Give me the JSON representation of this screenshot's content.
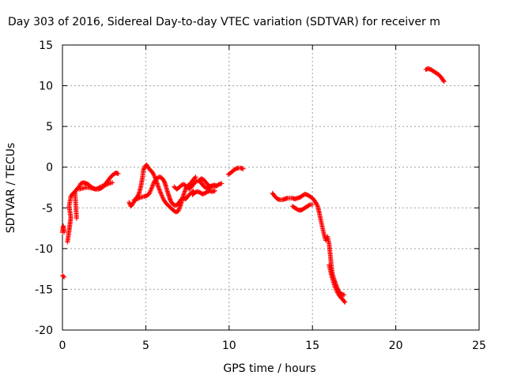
{
  "chart_data": {
    "type": "scatter",
    "title": "Day 303 of 2016, Sidereal Day-to-day VTEC variation (SDTVAR) for receiver m",
    "xlabel": "GPS time / hours",
    "ylabel": "SDTVAR / TECUs",
    "xlim": [
      0,
      25
    ],
    "ylim": [
      -20,
      15
    ],
    "xticks": [
      0,
      5,
      10,
      15,
      20,
      25
    ],
    "yticks": [
      -20,
      -15,
      -10,
      -5,
      0,
      5,
      10,
      15
    ],
    "grid": true,
    "marker": "+",
    "color": "#ff0000",
    "series": [
      {
        "name": "SDTVAR",
        "segments": [
          [
            [
              0.0,
              -13.3
            ],
            [
              0.1,
              -13.5
            ]
          ],
          [
            [
              0.0,
              -8.0
            ],
            [
              0.05,
              -7.2
            ],
            [
              0.1,
              -8.0
            ]
          ],
          [
            [
              0.3,
              -9.2
            ],
            [
              0.35,
              -8.5
            ],
            [
              0.4,
              -7.8
            ],
            [
              0.45,
              -7.0
            ],
            [
              0.5,
              -6.2
            ],
            [
              0.45,
              -5.5
            ],
            [
              0.4,
              -4.8
            ],
            [
              0.45,
              -4.2
            ],
            [
              0.5,
              -3.6
            ],
            [
              0.6,
              -3.3
            ],
            [
              0.75,
              -3.0
            ],
            [
              0.85,
              -6.3
            ]
          ],
          [
            [
              0.8,
              -2.9
            ],
            [
              0.9,
              -2.6
            ],
            [
              1.0,
              -2.4
            ],
            [
              1.1,
              -2.0
            ],
            [
              1.25,
              -1.9
            ],
            [
              1.4,
              -2.0
            ],
            [
              1.55,
              -2.1
            ],
            [
              1.7,
              -2.4
            ],
            [
              1.85,
              -2.6
            ],
            [
              2.0,
              -2.7
            ],
            [
              2.15,
              -2.7
            ],
            [
              2.3,
              -2.6
            ],
            [
              2.45,
              -2.4
            ],
            [
              2.6,
              -2.0
            ],
            [
              2.75,
              -1.6
            ],
            [
              2.9,
              -1.2
            ],
            [
              3.05,
              -0.9
            ],
            [
              3.2,
              -0.7
            ],
            [
              3.35,
              -0.8
            ]
          ],
          [
            [
              1.0,
              -2.7
            ],
            [
              1.2,
              -2.6
            ],
            [
              1.4,
              -2.5
            ],
            [
              1.6,
              -2.5
            ],
            [
              1.8,
              -2.6
            ],
            [
              2.0,
              -2.7
            ],
            [
              2.2,
              -2.5
            ],
            [
              2.4,
              -2.3
            ],
            [
              2.6,
              -2.2
            ],
            [
              2.8,
              -2.0
            ],
            [
              3.0,
              -1.9
            ]
          ],
          [
            [
              4.0,
              -4.3
            ],
            [
              4.1,
              -4.8
            ],
            [
              4.2,
              -4.6
            ],
            [
              4.3,
              -4.2
            ],
            [
              4.45,
              -3.8
            ],
            [
              4.6,
              -3.2
            ],
            [
              4.7,
              -2.4
            ],
            [
              4.8,
              -1.3
            ],
            [
              4.85,
              -0.4
            ],
            [
              4.95,
              0.1
            ],
            [
              5.05,
              0.3
            ],
            [
              5.15,
              -0.1
            ],
            [
              5.3,
              -0.4
            ],
            [
              5.45,
              -0.8
            ],
            [
              5.6,
              -1.5
            ],
            [
              5.75,
              -2.4
            ],
            [
              5.9,
              -3.2
            ],
            [
              6.05,
              -3.9
            ],
            [
              6.2,
              -4.4
            ],
            [
              6.35,
              -4.7
            ],
            [
              6.5,
              -5.0
            ],
            [
              6.65,
              -5.3
            ],
            [
              6.8,
              -5.5
            ],
            [
              6.95,
              -5.4
            ],
            [
              7.1,
              -4.6
            ],
            [
              7.25,
              -3.5
            ],
            [
              7.4,
              -2.6
            ],
            [
              7.55,
              -2.2
            ],
            [
              7.7,
              -2.0
            ],
            [
              7.85,
              -1.5
            ],
            [
              8.0,
              -1.2
            ]
          ],
          [
            [
              4.3,
              -4.0
            ],
            [
              4.5,
              -3.9
            ],
            [
              4.7,
              -3.7
            ],
            [
              4.9,
              -3.6
            ],
            [
              5.05,
              -3.5
            ],
            [
              5.2,
              -3.3
            ],
            [
              5.35,
              -2.6
            ],
            [
              5.5,
              -1.8
            ],
            [
              5.65,
              -1.4
            ],
            [
              5.8,
              -1.2
            ],
            [
              5.95,
              -1.3
            ],
            [
              6.1,
              -1.7
            ],
            [
              6.2,
              -2.3
            ],
            [
              6.3,
              -3.0
            ],
            [
              6.4,
              -3.6
            ],
            [
              6.5,
              -4.2
            ],
            [
              6.65,
              -4.6
            ],
            [
              6.8,
              -4.7
            ],
            [
              6.95,
              -4.5
            ],
            [
              7.1,
              -4.0
            ],
            [
              7.25,
              -3.8
            ],
            [
              7.4,
              -3.9
            ],
            [
              7.55,
              -3.5
            ],
            [
              7.7,
              -3.2
            ],
            [
              7.85,
              -2.9
            ]
          ],
          [
            [
              6.7,
              -2.4
            ],
            [
              6.85,
              -2.7
            ],
            [
              7.0,
              -2.5
            ],
            [
              7.15,
              -2.2
            ],
            [
              7.3,
              -2.1
            ],
            [
              7.45,
              -2.4
            ],
            [
              7.6,
              -2.7
            ],
            [
              7.75,
              -2.4
            ],
            [
              7.9,
              -2.0
            ],
            [
              8.05,
              -1.7
            ],
            [
              8.2,
              -1.7
            ],
            [
              8.35,
              -2.0
            ],
            [
              8.5,
              -2.4
            ],
            [
              8.65,
              -2.6
            ],
            [
              8.8,
              -2.5
            ],
            [
              8.95,
              -2.3
            ],
            [
              9.1,
              -2.2
            ],
            [
              9.25,
              -2.3
            ],
            [
              9.4,
              -2.1
            ],
            [
              9.55,
              -2.0
            ]
          ],
          [
            [
              7.8,
              -3.4
            ],
            [
              7.95,
              -3.1
            ],
            [
              8.1,
              -3.0
            ],
            [
              8.25,
              -3.1
            ],
            [
              8.4,
              -3.3
            ],
            [
              8.55,
              -3.2
            ],
            [
              8.7,
              -3.0
            ],
            [
              8.85,
              -2.9
            ],
            [
              9.0,
              -3.0
            ],
            [
              9.15,
              -2.9
            ]
          ],
          [
            [
              8.2,
              -1.6
            ],
            [
              8.35,
              -1.4
            ],
            [
              8.5,
              -1.6
            ],
            [
              8.65,
              -2.0
            ],
            [
              8.8,
              -2.3
            ],
            [
              9.0,
              -2.4
            ],
            [
              9.2,
              -2.3
            ]
          ],
          [
            [
              9.95,
              -0.9
            ],
            [
              10.1,
              -0.7
            ],
            [
              10.25,
              -0.4
            ],
            [
              10.4,
              -0.2
            ],
            [
              10.55,
              -0.1
            ],
            [
              10.7,
              -0.1
            ],
            [
              10.85,
              -0.2
            ]
          ],
          [
            [
              12.6,
              -3.2
            ],
            [
              12.75,
              -3.6
            ],
            [
              12.9,
              -3.9
            ],
            [
              13.05,
              -4.0
            ],
            [
              13.2,
              -4.0
            ],
            [
              13.35,
              -3.9
            ],
            [
              13.5,
              -3.8
            ],
            [
              13.65,
              -3.8
            ],
            [
              13.8,
              -3.8
            ],
            [
              13.95,
              -3.9
            ],
            [
              14.1,
              -3.8
            ],
            [
              14.25,
              -3.7
            ],
            [
              14.4,
              -3.5
            ],
            [
              14.55,
              -3.3
            ],
            [
              14.7,
              -3.4
            ],
            [
              14.85,
              -3.6
            ],
            [
              15.0,
              -3.8
            ],
            [
              15.15,
              -4.2
            ],
            [
              15.3,
              -4.7
            ],
            [
              15.4,
              -5.5
            ],
            [
              15.5,
              -6.5
            ],
            [
              15.6,
              -7.4
            ],
            [
              15.7,
              -8.3
            ],
            [
              15.8,
              -9.0
            ]
          ],
          [
            [
              13.8,
              -4.8
            ],
            [
              13.95,
              -5.0
            ],
            [
              14.1,
              -5.2
            ],
            [
              14.25,
              -5.3
            ],
            [
              14.4,
              -5.2
            ],
            [
              14.55,
              -5.0
            ],
            [
              14.7,
              -4.8
            ],
            [
              14.85,
              -4.6
            ],
            [
              15.0,
              -4.6
            ]
          ],
          [
            [
              15.9,
              -8.5
            ],
            [
              16.0,
              -9.4
            ],
            [
              16.05,
              -10.4
            ],
            [
              16.1,
              -11.4
            ],
            [
              16.15,
              -12.4
            ],
            [
              16.2,
              -13.1
            ],
            [
              16.3,
              -13.8
            ],
            [
              16.4,
              -14.4
            ],
            [
              16.5,
              -14.9
            ],
            [
              16.6,
              -15.3
            ],
            [
              16.75,
              -15.6
            ],
            [
              16.9,
              -15.7
            ]
          ],
          [
            [
              16.0,
              -12.0
            ],
            [
              16.1,
              -12.9
            ],
            [
              16.2,
              -13.7
            ],
            [
              16.35,
              -14.7
            ],
            [
              16.5,
              -15.4
            ],
            [
              16.65,
              -15.9
            ],
            [
              16.8,
              -16.2
            ],
            [
              16.95,
              -16.6
            ]
          ],
          [
            [
              21.8,
              12.0
            ],
            [
              21.95,
              12.1
            ],
            [
              22.1,
              12.0
            ],
            [
              22.25,
              11.8
            ],
            [
              22.4,
              11.6
            ],
            [
              22.55,
              11.4
            ],
            [
              22.7,
              11.1
            ],
            [
              22.8,
              10.8
            ],
            [
              22.9,
              10.5
            ]
          ]
        ]
      }
    ]
  }
}
